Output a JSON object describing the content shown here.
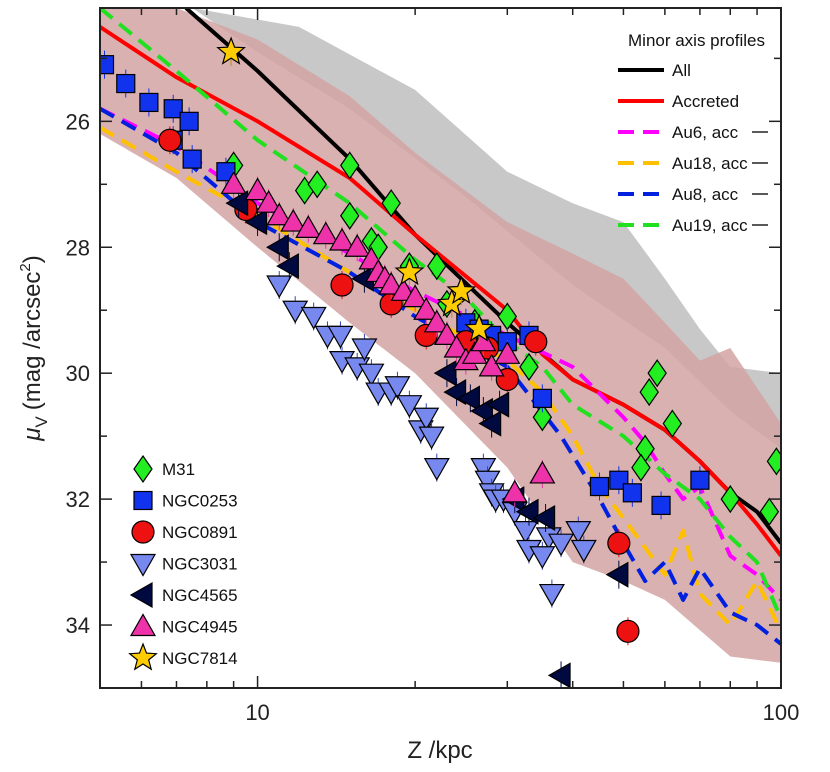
{
  "chart_data": {
    "type": "scatter",
    "xscale": "log",
    "xlim": [
      5,
      100
    ],
    "ylim": [
      35,
      24.2
    ],
    "y_inverted": true,
    "xlabel": "Z /kpc",
    "ylabel_main": "μ",
    "ylabel_sub": "V",
    "ylabel_units": "(mag /arcsec",
    "ylabel_exp": "2",
    "ylabel_close": ")",
    "x_ticks": [
      10,
      100
    ],
    "x_tick_labels": [
      "10",
      "100"
    ],
    "y_ticks": [
      26,
      28,
      30,
      32,
      34
    ],
    "y_tick_labels": [
      "26",
      "28",
      "30",
      "32",
      "34"
    ],
    "legend_lines_title": "Minor axis profiles",
    "bands": [
      {
        "name": "All range",
        "color": "#c8c8c8",
        "upper": [
          [
            7.5,
            24.2
          ],
          [
            12,
            24.5
          ],
          [
            20,
            25.5
          ],
          [
            30,
            26.8
          ],
          [
            40,
            27.3
          ],
          [
            50,
            27.6
          ],
          [
            60,
            28.5
          ],
          [
            70,
            29.3
          ],
          [
            80,
            29.9
          ],
          [
            100,
            30.0
          ]
        ],
        "lower": [
          [
            100,
            31.2
          ],
          [
            80,
            30.6
          ],
          [
            60,
            29.6
          ],
          [
            40,
            28.6
          ],
          [
            25,
            27.2
          ],
          [
            15,
            25.8
          ],
          [
            10,
            24.9
          ],
          [
            7.5,
            24.2
          ]
        ]
      },
      {
        "name": "Accreted range",
        "color": "#d4a3a3",
        "upper": [
          [
            5,
            24.2
          ],
          [
            7,
            24.2
          ],
          [
            10,
            24.7
          ],
          [
            15,
            25.6
          ],
          [
            20,
            26.5
          ],
          [
            30,
            27.6
          ],
          [
            40,
            28.1
          ],
          [
            50,
            28.5
          ],
          [
            60,
            29.2
          ],
          [
            70,
            29.8
          ],
          [
            80,
            29.6
          ],
          [
            100,
            30.8
          ]
        ],
        "lower": [
          [
            100,
            34.6
          ],
          [
            80,
            34.5
          ],
          [
            60,
            33.6
          ],
          [
            50,
            33.3
          ],
          [
            40,
            33.0
          ],
          [
            30,
            31.5
          ],
          [
            20,
            30.0
          ],
          [
            15,
            29.2
          ],
          [
            10,
            28.0
          ],
          [
            7,
            26.9
          ],
          [
            5,
            26.2
          ]
        ]
      }
    ],
    "lines": [
      {
        "name": "All",
        "color": "#000000",
        "dash": "none",
        "points": [
          [
            7.3,
            24.2
          ],
          [
            10,
            25.2
          ],
          [
            15,
            26.6
          ],
          [
            20,
            27.8
          ],
          [
            30,
            29.2
          ],
          [
            40,
            30.1
          ],
          [
            50,
            30.5
          ],
          [
            60,
            30.9
          ],
          [
            70,
            31.4
          ],
          [
            80,
            31.9
          ],
          [
            90,
            32.2
          ],
          [
            100,
            32.7
          ]
        ]
      },
      {
        "name": "Accreted",
        "color": "#ff0000",
        "dash": "none",
        "points": [
          [
            5,
            24.5
          ],
          [
            7,
            25.3
          ],
          [
            10,
            26.0
          ],
          [
            15,
            26.9
          ],
          [
            20,
            27.8
          ],
          [
            30,
            29.0
          ],
          [
            35,
            29.7
          ],
          [
            40,
            30.1
          ],
          [
            50,
            30.5
          ],
          [
            60,
            30.9
          ],
          [
            70,
            31.4
          ],
          [
            80,
            31.9
          ],
          [
            90,
            32.4
          ],
          [
            100,
            32.9
          ]
        ]
      },
      {
        "name": "Au6, acc",
        "color": "#ff00ff",
        "dash": "dashed",
        "points": [
          [
            5,
            25.8
          ],
          [
            7,
            26.4
          ],
          [
            10,
            27.3
          ],
          [
            15,
            28.1
          ],
          [
            20,
            28.7
          ],
          [
            30,
            29.4
          ],
          [
            40,
            29.9
          ],
          [
            50,
            30.7
          ],
          [
            55,
            31.1
          ],
          [
            60,
            31.6
          ],
          [
            65,
            32.0
          ],
          [
            70,
            31.8
          ],
          [
            80,
            32.9
          ],
          [
            90,
            33.2
          ],
          [
            100,
            33.6
          ]
        ]
      },
      {
        "name": "Au18, acc",
        "color": "#ffc000",
        "dash": "dashed",
        "points": [
          [
            5,
            26.1
          ],
          [
            7,
            26.8
          ],
          [
            10,
            27.5
          ],
          [
            15,
            28.4
          ],
          [
            20,
            29.0
          ],
          [
            30,
            29.8
          ],
          [
            35,
            30.3
          ],
          [
            40,
            31.0
          ],
          [
            45,
            31.8
          ],
          [
            50,
            32.3
          ],
          [
            60,
            33.2
          ],
          [
            65,
            32.5
          ],
          [
            70,
            33.5
          ],
          [
            80,
            34.0
          ],
          [
            90,
            33.3
          ],
          [
            100,
            34.1
          ]
        ]
      },
      {
        "name": "Au8, acc",
        "color": "#0020e0",
        "dash": "dashed",
        "points": [
          [
            5,
            25.8
          ],
          [
            7,
            26.5
          ],
          [
            10,
            27.6
          ],
          [
            15,
            28.4
          ],
          [
            20,
            29.1
          ],
          [
            30,
            29.9
          ],
          [
            38,
            31.0
          ],
          [
            45,
            32.0
          ],
          [
            50,
            32.7
          ],
          [
            55,
            33.3
          ],
          [
            60,
            33.0
          ],
          [
            65,
            33.6
          ],
          [
            70,
            33.1
          ],
          [
            80,
            33.8
          ],
          [
            90,
            34.0
          ],
          [
            100,
            34.3
          ]
        ]
      },
      {
        "name": "Au19, acc",
        "color": "#20e020",
        "dash": "dashed",
        "points": [
          [
            5,
            24.2
          ],
          [
            7,
            25.2
          ],
          [
            10,
            26.3
          ],
          [
            15,
            27.3
          ],
          [
            20,
            28.2
          ],
          [
            25,
            28.8
          ],
          [
            30,
            29.5
          ],
          [
            35,
            29.9
          ],
          [
            40,
            30.5
          ],
          [
            50,
            31.0
          ],
          [
            60,
            31.6
          ],
          [
            70,
            32.0
          ],
          [
            80,
            32.6
          ],
          [
            90,
            33.0
          ],
          [
            100,
            33.9
          ]
        ]
      }
    ],
    "series": [
      {
        "name": "M31",
        "marker": "diamond",
        "color": "#22ee22",
        "err_color": "#22dd22",
        "points": [
          [
            9,
            26.7
          ],
          [
            12.3,
            27.1
          ],
          [
            13,
            27.0
          ],
          [
            15,
            26.7
          ],
          [
            15,
            27.5
          ],
          [
            16.5,
            27.9
          ],
          [
            17,
            28.0
          ],
          [
            18,
            27.3
          ],
          [
            19.5,
            28.3
          ],
          [
            22,
            28.3
          ],
          [
            23,
            28.9
          ],
          [
            26,
            29.2
          ],
          [
            30,
            29.1
          ],
          [
            33,
            29.9
          ],
          [
            35,
            30.7
          ],
          [
            55,
            31.2
          ],
          [
            56,
            30.3
          ],
          [
            58,
            30.0
          ],
          [
            62,
            30.8
          ],
          [
            54,
            31.5
          ],
          [
            80,
            32.0
          ],
          [
            95,
            32.2
          ],
          [
            98,
            31.4
          ]
        ]
      },
      {
        "name": "NGC0253",
        "marker": "square",
        "color": "#1133ee",
        "err_color": "#1133ee",
        "points": [
          [
            5.1,
            25.1
          ],
          [
            5.6,
            25.4
          ],
          [
            6.2,
            25.7
          ],
          [
            6.9,
            25.8
          ],
          [
            7.4,
            26.0
          ],
          [
            6.9,
            26.3
          ],
          [
            7.5,
            26.6
          ],
          [
            8.7,
            26.8
          ],
          [
            25,
            29.2
          ],
          [
            26.5,
            29.3
          ],
          [
            28,
            29.4
          ],
          [
            30,
            29.5
          ],
          [
            33,
            29.4
          ],
          [
            35,
            30.4
          ],
          [
            45,
            31.8
          ],
          [
            49,
            31.7
          ],
          [
            52,
            31.9
          ],
          [
            59,
            32.1
          ],
          [
            70,
            31.7
          ]
        ]
      },
      {
        "name": "NGC0891",
        "marker": "circle",
        "color": "#ee1111",
        "err_color": "#ee1111",
        "points": [
          [
            6.8,
            26.3
          ],
          [
            9.5,
            27.4
          ],
          [
            14.5,
            28.6
          ],
          [
            18,
            28.9
          ],
          [
            21,
            29.4
          ],
          [
            25,
            29.5
          ],
          [
            27.5,
            29.6
          ],
          [
            30,
            30.1
          ],
          [
            34,
            29.5
          ],
          [
            49,
            32.7
          ],
          [
            51,
            34.1
          ]
        ]
      },
      {
        "name": "NGC3031",
        "marker": "triangle-down",
        "color": "#7788ee",
        "err_color": "#3344bb",
        "points": [
          [
            11,
            28.6
          ],
          [
            11.8,
            29.0
          ],
          [
            12.8,
            29.1
          ],
          [
            13.6,
            29.4
          ],
          [
            14.4,
            29.4
          ],
          [
            14.5,
            29.8
          ],
          [
            15.5,
            29.9
          ],
          [
            16,
            29.6
          ],
          [
            16.5,
            30.0
          ],
          [
            17,
            30.3
          ],
          [
            18,
            30.3
          ],
          [
            18.5,
            30.2
          ],
          [
            19.5,
            30.5
          ],
          [
            20.5,
            30.9
          ],
          [
            21,
            30.7
          ],
          [
            21.5,
            31.0
          ],
          [
            22,
            31.5
          ],
          [
            27,
            31.5
          ],
          [
            27.5,
            31.7
          ],
          [
            28,
            31.9
          ],
          [
            28.5,
            32.0
          ],
          [
            29.5,
            32.0
          ],
          [
            31,
            32.2
          ],
          [
            32.5,
            32.5
          ],
          [
            33,
            32.8
          ],
          [
            36,
            32.6
          ],
          [
            35,
            32.9
          ],
          [
            36.5,
            33.5
          ],
          [
            38,
            32.7
          ],
          [
            41,
            32.5
          ],
          [
            42,
            32.8
          ]
        ]
      },
      {
        "name": "NGC4565",
        "marker": "triangle-left",
        "color": "#000a40",
        "err_color": "#000a40",
        "points": [
          [
            9.2,
            27.3
          ],
          [
            10,
            27.6
          ],
          [
            11,
            28.0
          ],
          [
            11.5,
            28.3
          ],
          [
            16,
            28.5
          ],
          [
            23,
            30.0
          ],
          [
            24,
            30.3
          ],
          [
            25.5,
            30.4
          ],
          [
            27,
            30.6
          ],
          [
            28,
            30.8
          ],
          [
            29,
            30.5
          ],
          [
            31,
            32.0
          ],
          [
            33,
            32.2
          ],
          [
            35.5,
            32.3
          ],
          [
            38,
            34.8
          ],
          [
            49,
            33.2
          ]
        ]
      },
      {
        "name": "NGC4945",
        "marker": "triangle-up",
        "color": "#ee33aa",
        "err_color": "#ee33aa",
        "points": [
          [
            9,
            27.0
          ],
          [
            10,
            27.1
          ],
          [
            10.5,
            27.3
          ],
          [
            11,
            27.5
          ],
          [
            11.7,
            27.6
          ],
          [
            12.5,
            27.7
          ],
          [
            13.5,
            27.8
          ],
          [
            14.5,
            27.9
          ],
          [
            15.5,
            28.0
          ],
          [
            16.5,
            28.2
          ],
          [
            17,
            28.4
          ],
          [
            17.5,
            28.5
          ],
          [
            18,
            28.6
          ],
          [
            19,
            28.7
          ],
          [
            20,
            28.8
          ],
          [
            21,
            29.0
          ],
          [
            22,
            29.2
          ],
          [
            23,
            29.4
          ],
          [
            24,
            29.6
          ],
          [
            25,
            29.8
          ],
          [
            26,
            29.7
          ],
          [
            27,
            29.5
          ],
          [
            28,
            29.9
          ],
          [
            30,
            29.7
          ],
          [
            31,
            31.9
          ],
          [
            35,
            31.6
          ]
        ]
      },
      {
        "name": "NGC7814",
        "marker": "star",
        "color": "#ffcc00",
        "err_color": "#c09000",
        "points": [
          [
            8.9,
            24.9
          ],
          [
            19.5,
            28.4
          ],
          [
            23.5,
            28.9
          ],
          [
            24.5,
            28.7
          ],
          [
            26.5,
            29.3
          ]
        ]
      }
    ]
  }
}
